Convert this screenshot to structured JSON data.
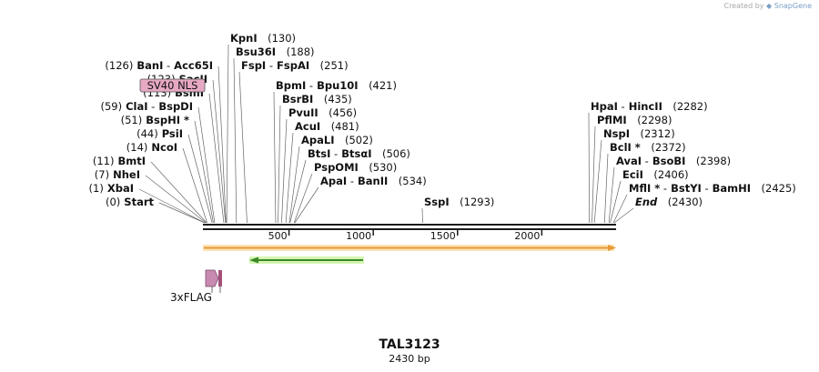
{
  "credit": {
    "prefix": "Created by",
    "brand": "SnapGene",
    "logo_icon": "snapgene-logo-icon"
  },
  "map": {
    "name": "TAL3123",
    "length_label": "2430 bp",
    "length": 2430,
    "ticks": [
      {
        "pos": 500,
        "label": "500"
      },
      {
        "pos": 1000,
        "label": "1000"
      },
      {
        "pos": 1500,
        "label": "1500"
      },
      {
        "pos": 2000,
        "label": "2000"
      }
    ],
    "feature_labels": [
      "SV40 NLS",
      "3xFLAG"
    ],
    "left_sites": [
      {
        "pos": 0,
        "parts": [
          {
            "t": "(0)",
            "k": "n"
          },
          {
            "t": "Start",
            "k": "e"
          }
        ]
      },
      {
        "pos": 1,
        "parts": [
          {
            "t": "(1)",
            "k": "n"
          },
          {
            "t": "XbaI",
            "k": "e"
          }
        ]
      },
      {
        "pos": 7,
        "parts": [
          {
            "t": "(7)",
            "k": "n"
          },
          {
            "t": "NheI",
            "k": "e"
          }
        ]
      },
      {
        "pos": 11,
        "parts": [
          {
            "t": "(11)",
            "k": "n"
          },
          {
            "t": "BmtI",
            "k": "e"
          }
        ]
      },
      {
        "pos": 14,
        "parts": [
          {
            "t": "(14)",
            "k": "n"
          },
          {
            "t": "NcoI",
            "k": "e"
          }
        ]
      },
      {
        "pos": 44,
        "parts": [
          {
            "t": "(44)",
            "k": "n"
          },
          {
            "t": "PsiI",
            "k": "e"
          }
        ]
      },
      {
        "pos": 51,
        "parts": [
          {
            "t": "(51)",
            "k": "n"
          },
          {
            "t": "BspHI *",
            "k": "e"
          }
        ]
      },
      {
        "pos": 59,
        "parts": [
          {
            "t": "(59)",
            "k": "n"
          },
          {
            "t": "ClaI",
            "k": "e"
          },
          {
            "t": "-",
            "k": "s"
          },
          {
            "t": "BspDI",
            "k": "e"
          }
        ]
      },
      {
        "pos": 113,
        "parts": [
          {
            "t": "(113)",
            "k": "n"
          },
          {
            "t": "BsmI",
            "k": "e"
          }
        ]
      },
      {
        "pos": 123,
        "parts": [
          {
            "t": "(123)",
            "k": "n"
          },
          {
            "t": "SacII",
            "k": "e"
          }
        ]
      },
      {
        "pos": 126,
        "parts": [
          {
            "t": "(126)",
            "k": "n"
          },
          {
            "t": "BanI",
            "k": "e"
          },
          {
            "t": "-",
            "k": "s"
          },
          {
            "t": "Acc65I",
            "k": "e"
          }
        ]
      }
    ],
    "right_sites": [
      {
        "pos": 130,
        "parts": [
          {
            "t": "KpnI",
            "k": "e"
          },
          {
            "t": "(130)",
            "k": "n"
          }
        ]
      },
      {
        "pos": 188,
        "parts": [
          {
            "t": "Bsu36I",
            "k": "e"
          },
          {
            "t": "(188)",
            "k": "n"
          }
        ]
      },
      {
        "pos": 251,
        "parts": [
          {
            "t": "FspI",
            "k": "e"
          },
          {
            "t": "-",
            "k": "s"
          },
          {
            "t": "FspAI",
            "k": "e"
          },
          {
            "t": "(251)",
            "k": "n"
          }
        ]
      },
      {
        "pos": 421,
        "parts": [
          {
            "t": "BpmI",
            "k": "e"
          },
          {
            "t": "-",
            "k": "s"
          },
          {
            "t": "Bpu10I",
            "k": "e"
          },
          {
            "t": "(421)",
            "k": "n"
          }
        ]
      },
      {
        "pos": 435,
        "parts": [
          {
            "t": "BsrBI",
            "k": "e"
          },
          {
            "t": "(435)",
            "k": "n"
          }
        ]
      },
      {
        "pos": 456,
        "parts": [
          {
            "t": "PvuII",
            "k": "e"
          },
          {
            "t": "(456)",
            "k": "n"
          }
        ]
      },
      {
        "pos": 481,
        "parts": [
          {
            "t": "AcuI",
            "k": "e"
          },
          {
            "t": "(481)",
            "k": "n"
          }
        ]
      },
      {
        "pos": 502,
        "parts": [
          {
            "t": "ApaLI",
            "k": "e"
          },
          {
            "t": "(502)",
            "k": "n"
          }
        ]
      },
      {
        "pos": 506,
        "parts": [
          {
            "t": "BtsI",
            "k": "e"
          },
          {
            "t": "-",
            "k": "s"
          },
          {
            "t": "BtsαI",
            "k": "e"
          },
          {
            "t": "(506)",
            "k": "n"
          }
        ]
      },
      {
        "pos": 530,
        "parts": [
          {
            "t": "PspOMI",
            "k": "e"
          },
          {
            "t": "(530)",
            "k": "n"
          }
        ]
      },
      {
        "pos": 534,
        "parts": [
          {
            "t": "ApaI",
            "k": "e"
          },
          {
            "t": "-",
            "k": "s"
          },
          {
            "t": "BanII",
            "k": "e"
          },
          {
            "t": "(534)",
            "k": "n"
          }
        ]
      },
      {
        "pos": 1293,
        "parts": [
          {
            "t": "SspI",
            "k": "e"
          },
          {
            "t": "(1293)",
            "k": "n"
          }
        ]
      },
      {
        "pos": 2282,
        "parts": [
          {
            "t": "HpaI",
            "k": "e"
          },
          {
            "t": "-",
            "k": "s"
          },
          {
            "t": "HincII",
            "k": "e"
          },
          {
            "t": "(2282)",
            "k": "n"
          }
        ]
      },
      {
        "pos": 2298,
        "parts": [
          {
            "t": "PflMI",
            "k": "e"
          },
          {
            "t": "(2298)",
            "k": "n"
          }
        ]
      },
      {
        "pos": 2312,
        "parts": [
          {
            "t": "NspI",
            "k": "e"
          },
          {
            "t": "(2312)",
            "k": "n"
          }
        ]
      },
      {
        "pos": 2372,
        "parts": [
          {
            "t": "BclI *",
            "k": "e"
          },
          {
            "t": "(2372)",
            "k": "n"
          }
        ]
      },
      {
        "pos": 2398,
        "parts": [
          {
            "t": "AvaI",
            "k": "e"
          },
          {
            "t": "-",
            "k": "s"
          },
          {
            "t": "BsoBI",
            "k": "e"
          },
          {
            "t": "(2398)",
            "k": "n"
          }
        ]
      },
      {
        "pos": 2406,
        "parts": [
          {
            "t": "EciI",
            "k": "e"
          },
          {
            "t": "(2406)",
            "k": "n"
          }
        ]
      },
      {
        "pos": 2425,
        "parts": [
          {
            "t": "MflI *",
            "k": "e"
          },
          {
            "t": "-",
            "k": "s"
          },
          {
            "t": "BstYI",
            "k": "e"
          },
          {
            "t": "-",
            "k": "s"
          },
          {
            "t": "BamHI",
            "k": "e"
          },
          {
            "t": "(2425)",
            "k": "n"
          }
        ]
      },
      {
        "pos": 2430,
        "parts": [
          {
            "t": "End",
            "k": "i"
          },
          {
            "t": "(2430)",
            "k": "n"
          }
        ]
      }
    ],
    "colors": {
      "backbone": "#1a1a1a",
      "orf_fill": "#f6c95d",
      "orf_outline": "#e89a3a",
      "green_arrow": "#3a8a2a",
      "green_glow": "#c8ef9a",
      "sv40": "#e7a8c4",
      "flag": "#c88ab0",
      "text": "#111111",
      "site_line": "#666666"
    }
  }
}
